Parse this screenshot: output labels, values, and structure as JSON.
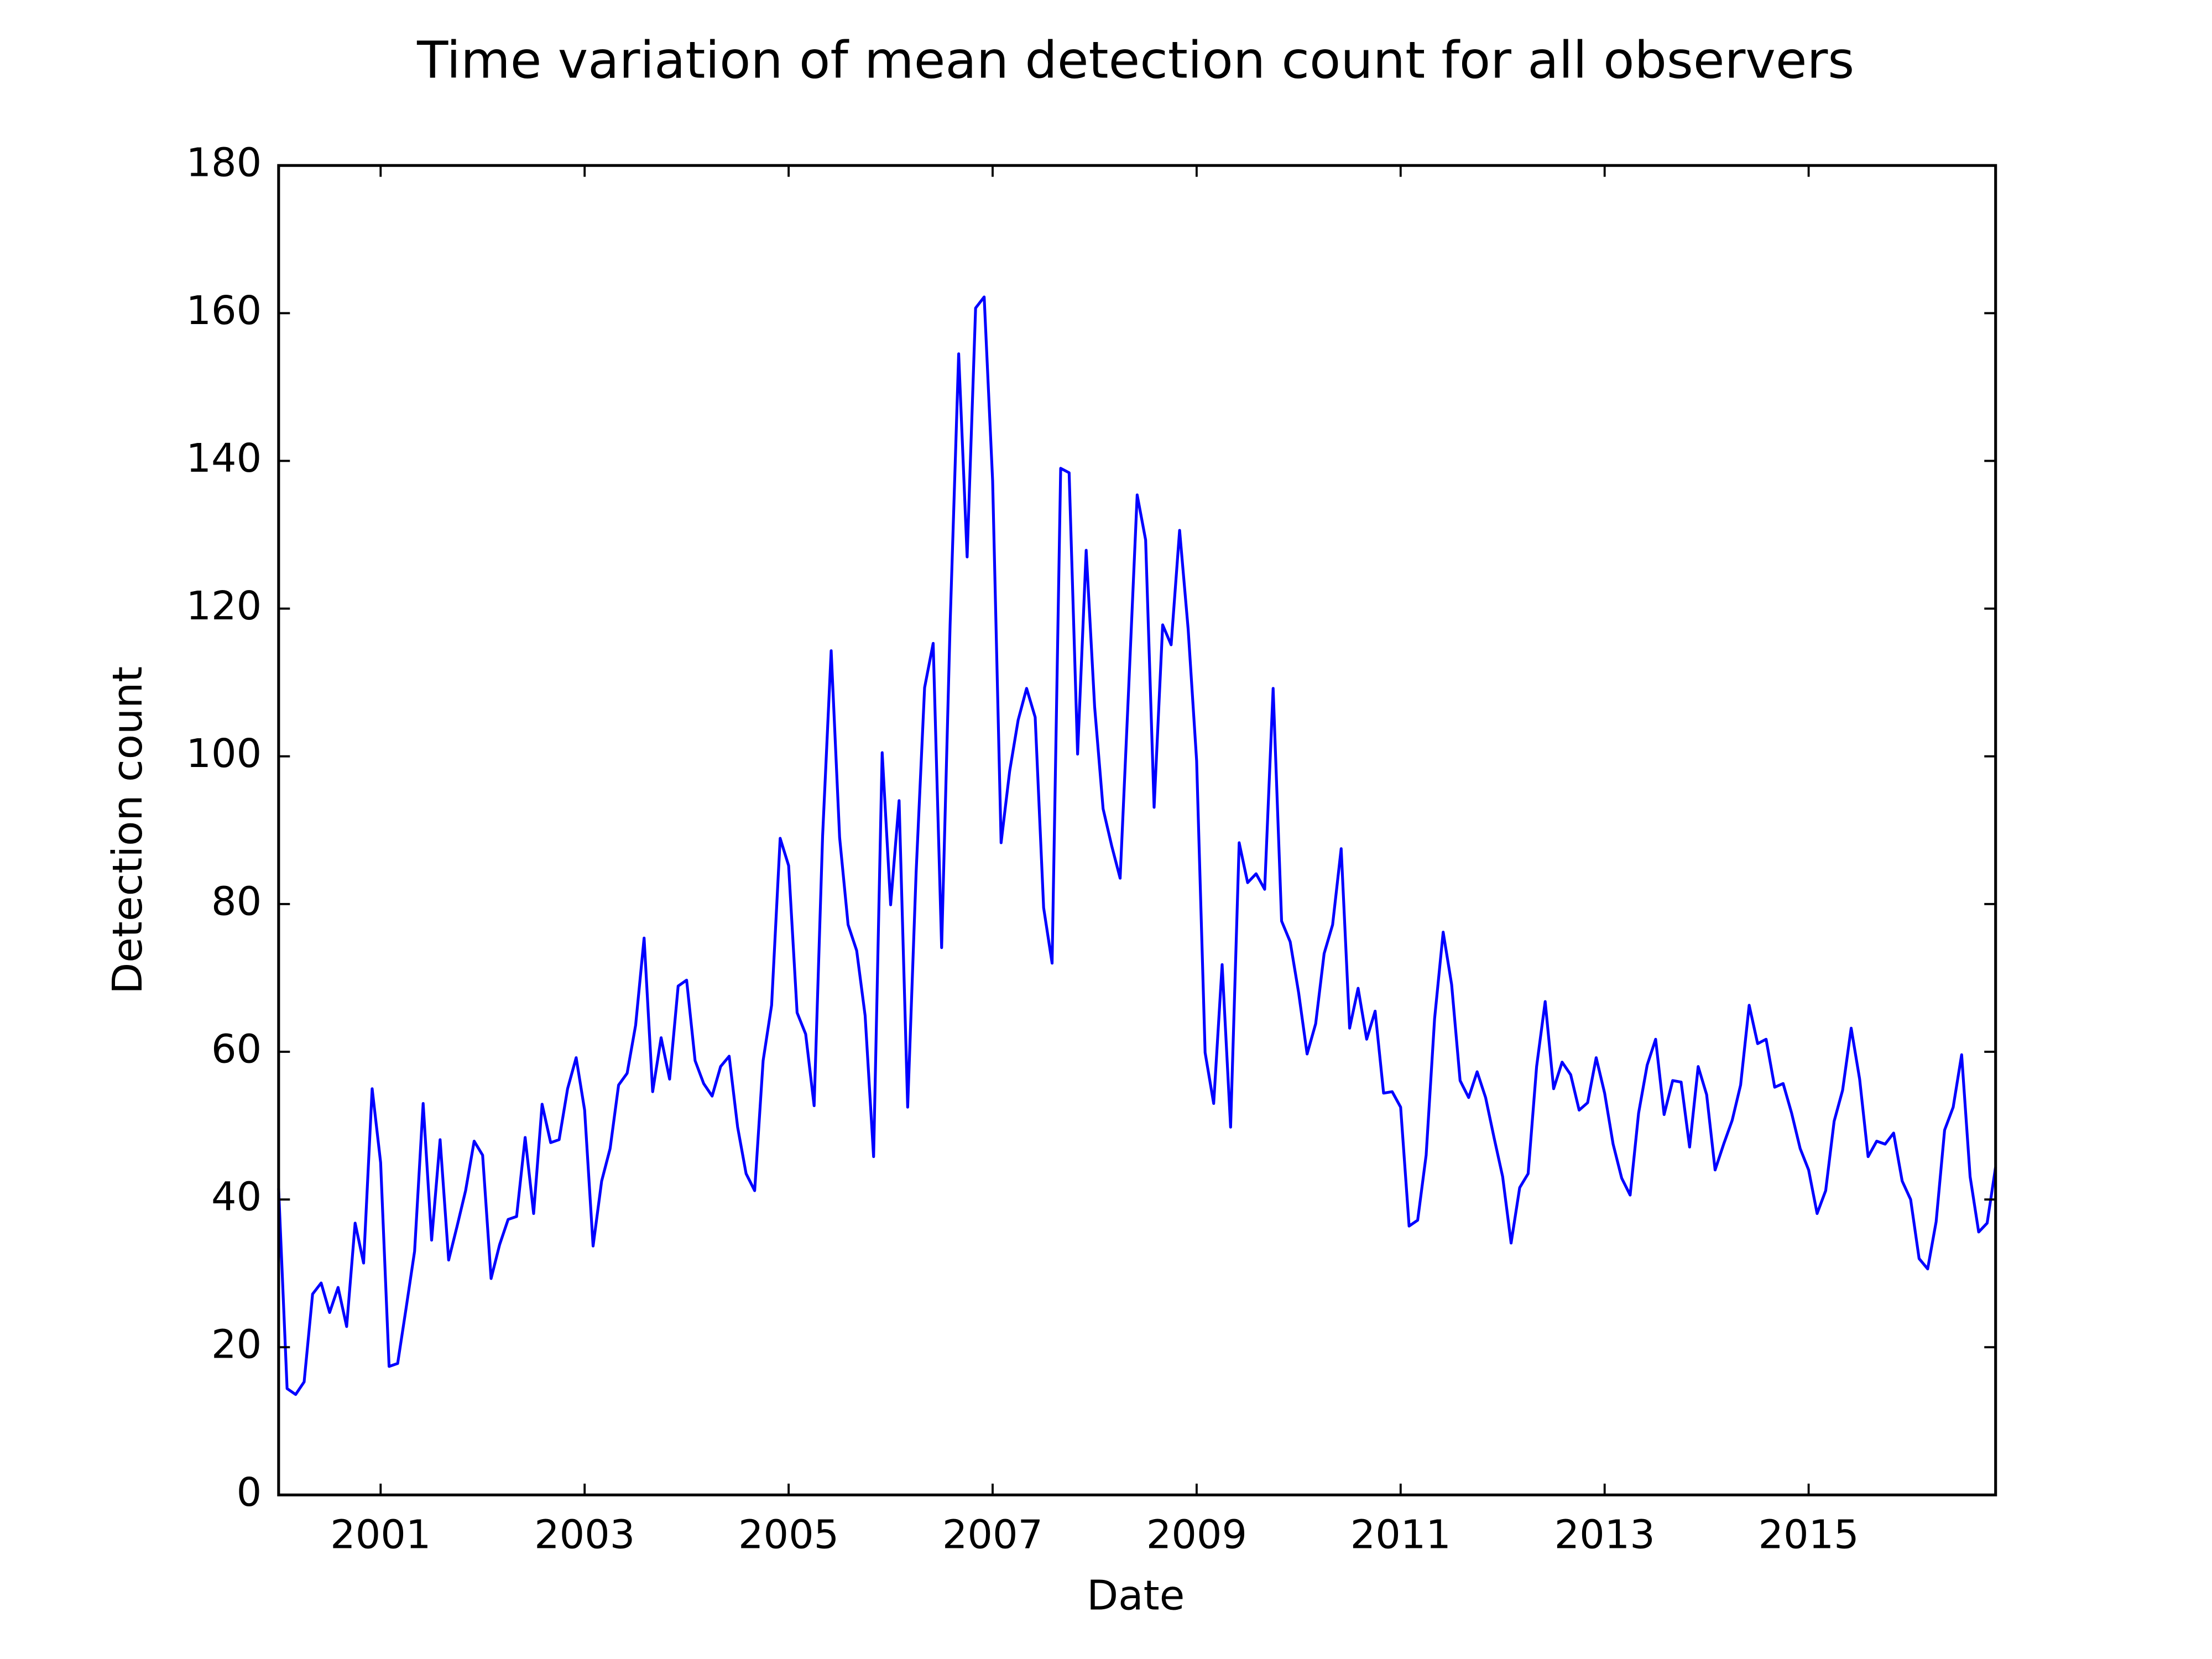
{
  "chart_data": {
    "type": "line",
    "title": "Time variation of mean detection count for all observers",
    "xlabel": "Date",
    "ylabel": "Detection count",
    "color": "#0000ff",
    "x": [
      2000,
      2000.083,
      2000.167,
      2000.25,
      2000.333,
      2000.417,
      2000.5,
      2000.583,
      2000.667,
      2000.75,
      2000.833,
      2000.917,
      2001,
      2001.083,
      2001.167,
      2001.25,
      2001.333,
      2001.417,
      2001.5,
      2001.583,
      2001.667,
      2001.75,
      2001.833,
      2001.917,
      2002,
      2002.083,
      2002.167,
      2002.25,
      2002.333,
      2002.417,
      2002.5,
      2002.583,
      2002.667,
      2002.75,
      2002.833,
      2002.917,
      2003,
      2003.083,
      2003.167,
      2003.25,
      2003.333,
      2003.417,
      2003.5,
      2003.583,
      2003.667,
      2003.75,
      2003.833,
      2003.917,
      2004,
      2004.083,
      2004.167,
      2004.25,
      2004.333,
      2004.417,
      2004.5,
      2004.583,
      2004.667,
      2004.75,
      2004.833,
      2004.917,
      2005,
      2005.083,
      2005.167,
      2005.25,
      2005.333,
      2005.417,
      2005.5,
      2005.583,
      2005.667,
      2005.75,
      2005.833,
      2005.917,
      2006,
      2006.083,
      2006.167,
      2006.25,
      2006.333,
      2006.417,
      2006.5,
      2006.583,
      2006.667,
      2006.75,
      2006.833,
      2006.917,
      2007,
      2007.083,
      2007.167,
      2007.25,
      2007.333,
      2007.417,
      2007.5,
      2007.583,
      2007.667,
      2007.75,
      2007.833,
      2007.917,
      2008,
      2008.083,
      2008.167,
      2008.25,
      2008.333,
      2008.417,
      2008.5,
      2008.583,
      2008.667,
      2008.75,
      2008.833,
      2008.917,
      2009,
      2009.083,
      2009.167,
      2009.25,
      2009.333,
      2009.417,
      2009.5,
      2009.583,
      2009.667,
      2009.75,
      2009.833,
      2009.917,
      2010,
      2010.083,
      2010.167,
      2010.25,
      2010.333,
      2010.417,
      2010.5,
      2010.583,
      2010.667,
      2010.75,
      2010.833,
      2010.917,
      2011,
      2011.083,
      2011.167,
      2011.25,
      2011.333,
      2011.417,
      2011.5,
      2011.583,
      2011.667,
      2011.75,
      2011.833,
      2011.917,
      2012,
      2012.083,
      2012.167,
      2012.25,
      2012.333,
      2012.417,
      2012.5,
      2012.583,
      2012.667,
      2012.75,
      2012.833,
      2012.917,
      2013,
      2013.083,
      2013.167,
      2013.25,
      2013.333,
      2013.417,
      2013.5,
      2013.583,
      2013.667,
      2013.75,
      2013.833,
      2013.917,
      2014,
      2014.083,
      2014.167,
      2014.25,
      2014.333,
      2014.417,
      2014.5,
      2014.583,
      2014.667,
      2014.75,
      2014.833,
      2014.917,
      2015,
      2015.083,
      2015.167,
      2015.25,
      2015.333,
      2015.417,
      2015.5,
      2015.583,
      2015.667,
      2015.75,
      2015.833,
      2015.917,
      2016,
      2016.083,
      2016.167,
      2016.25,
      2016.333,
      2016.417,
      2016.5,
      2016.583,
      2016.667,
      2016.75,
      2016.833
    ],
    "values": [
      41.5,
      14.4,
      13.6,
      15.3,
      27.2,
      28.7,
      24.7,
      28.1,
      22.8,
      36.8,
      31.4,
      55.0,
      45.0,
      17.4,
      17.8,
      25.3,
      33.0,
      53.0,
      34.5,
      48.1,
      31.8,
      36.4,
      41.2,
      47.9,
      46.0,
      29.3,
      33.9,
      37.3,
      37.7,
      48.4,
      38.1,
      52.9,
      47.7,
      48.1,
      55.0,
      59.2,
      52.1,
      33.7,
      42.5,
      46.9,
      55.5,
      57.1,
      63.6,
      75.4,
      54.6,
      61.9,
      56.3,
      68.9,
      69.7,
      58.8,
      55.7,
      54.0,
      58.0,
      59.4,
      49.8,
      43.5,
      41.2,
      58.8,
      66.3,
      88.9,
      85.2,
      65.3,
      62.4,
      52.7,
      89.2,
      114.3,
      89.0,
      77.2,
      73.7,
      64.9,
      45.8,
      100.5,
      79.9,
      94.0,
      52.5,
      84.3,
      109.3,
      115.3,
      74.1,
      117.8,
      154.5,
      127.0,
      160.7,
      162.2,
      137.3,
      88.3,
      98.0,
      104.9,
      109.2,
      105.3,
      79.5,
      72.0,
      139.0,
      138.4,
      100.3,
      127.9,
      106.7,
      92.9,
      87.9,
      83.5,
      109.0,
      135.4,
      129.3,
      93.1,
      117.8,
      115.1,
      130.6,
      117.2,
      99.4,
      59.9,
      53.0,
      71.8,
      49.8,
      88.3,
      82.9,
      84.1,
      82.0,
      109.2,
      77.7,
      74.9,
      68.0,
      59.7,
      63.8,
      73.3,
      77.2,
      87.5,
      63.2,
      68.6,
      61.7,
      65.5,
      54.4,
      54.6,
      52.5,
      36.4,
      37.2,
      46.0,
      64.5,
      76.2,
      69.1,
      56.1,
      53.8,
      57.3,
      53.8,
      48.3,
      43.1,
      34.1,
      41.6,
      43.5,
      58.0,
      66.8,
      55.0,
      58.6,
      56.9,
      52.1,
      53.1,
      59.2,
      54.4,
      47.5,
      42.9,
      40.6,
      51.7,
      58.2,
      61.7,
      51.5,
      56.1,
      55.9,
      47.1,
      58.0,
      54.2,
      44.0,
      47.5,
      50.7,
      55.5,
      66.3,
      61.1,
      61.7,
      55.2,
      55.7,
      51.7,
      46.9,
      44.0,
      38.1,
      41.2,
      50.6,
      54.8,
      63.2,
      56.3,
      45.8,
      47.9,
      47.5,
      49.0,
      42.5,
      40.0,
      32.0,
      30.6,
      37.0,
      49.4,
      52.5,
      59.6,
      43.1,
      35.6,
      36.8,
      44.4
    ],
    "xlim": [
      2000,
      2016.833
    ],
    "xticks": [
      2001,
      2003,
      2005,
      2007,
      2009,
      2011,
      2013,
      2015
    ],
    "ylim": [
      0,
      180
    ],
    "yticks": [
      0,
      20,
      40,
      60,
      80,
      100,
      120,
      140,
      160,
      180
    ],
    "grid": false
  }
}
